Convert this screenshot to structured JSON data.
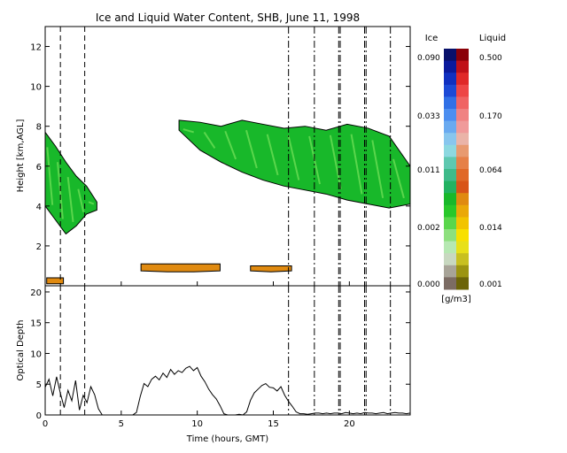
{
  "chart_data": [
    {
      "type": "heatmap",
      "title": "Ice and Liquid Water Content, SHB, June 11, 1998",
      "ylabel": "Height [km,AGL]",
      "xlim": [
        0,
        24
      ],
      "ylim": [
        0,
        13
      ],
      "x_ticks": [
        "0",
        "5",
        "10",
        "15",
        "20"
      ],
      "y_ticks": [
        "2",
        "4",
        "6",
        "8",
        "10",
        "12"
      ],
      "vlines_dashed": [
        1.0,
        2.6
      ],
      "vlines_dashdot": [
        16.0,
        17.7,
        19.3,
        19.4,
        21.0,
        21.1,
        22.7
      ],
      "regions": [
        {
          "phase": "ice",
          "x_start": 0.0,
          "x_end": 3.4,
          "y_top": [
            7.7,
            7.0,
            6.2,
            5.5,
            5.0,
            4.2
          ],
          "y_bottom": [
            4.0,
            3.3,
            2.6,
            3.0,
            3.6,
            3.8
          ]
        },
        {
          "phase": "ice",
          "x_start": 8.8,
          "x_end": 24.0,
          "y_top": [
            8.3,
            8.2,
            8.0,
            8.3,
            8.1,
            7.9,
            8.0,
            7.8,
            8.1,
            7.9,
            7.5,
            6.0
          ],
          "y_bottom": [
            7.8,
            6.8,
            6.2,
            5.7,
            5.3,
            5.0,
            4.8,
            4.6,
            4.3,
            4.1,
            3.9,
            4.1
          ]
        },
        {
          "phase": "liquid",
          "x_start": 6.3,
          "x_end": 11.5,
          "y_top": [
            1.1,
            1.1,
            1.1,
            1.1
          ],
          "y_bottom": [
            0.75,
            0.7,
            0.7,
            0.75
          ]
        },
        {
          "phase": "liquid",
          "x_start": 13.5,
          "x_end": 16.2,
          "y_top": [
            1.0,
            1.0,
            1.0
          ],
          "y_bottom": [
            0.75,
            0.7,
            0.75
          ]
        },
        {
          "phase": "liquid",
          "x_start": 0.1,
          "x_end": 1.2,
          "y_top": [
            0.4,
            0.4
          ],
          "y_bottom": [
            0.1,
            0.1
          ]
        }
      ],
      "colorbar": {
        "units": "[g/m3]",
        "ice_label": "Ice",
        "liquid_label": "Liquid",
        "ice_ticks": [
          "0.090",
          "0.033",
          "0.011",
          "0.002",
          "0.000"
        ],
        "liquid_ticks": [
          "0.500",
          "0.170",
          "0.064",
          "0.014",
          "0.001"
        ],
        "ice_colors": [
          "#08106a",
          "#0a1a9c",
          "#1030c0",
          "#1c4ad6",
          "#3070e6",
          "#4c8ef0",
          "#6aaaf0",
          "#88c6ee",
          "#8cd8e0",
          "#5ec8b0",
          "#3eba8a",
          "#22b262",
          "#18b82a",
          "#28c82a",
          "#5ad64c",
          "#8ee07e",
          "#b6e8b2",
          "#c8d8c0",
          "#a8a498",
          "#7c6c64"
        ],
        "liquid_colors": [
          "#8a0008",
          "#c01018",
          "#e02828",
          "#ee4646",
          "#f06464",
          "#f08282",
          "#f09a9a",
          "#eab4a8",
          "#e89a70",
          "#e68048",
          "#e06828",
          "#d85418",
          "#e08a10",
          "#eaa808",
          "#f2c400",
          "#f8e000",
          "#e8e018",
          "#c8c020",
          "#9c9410",
          "#6c6408"
        ]
      }
    },
    {
      "type": "line",
      "xlabel": "Time (hours, GMT)",
      "ylabel": "Optical Depth",
      "xlim": [
        0,
        24
      ],
      "ylim": [
        0,
        21
      ],
      "x_ticks": [
        "0",
        "5",
        "10",
        "15",
        "20"
      ],
      "y_ticks": [
        "0",
        "5",
        "10",
        "15",
        "20"
      ],
      "series": [
        {
          "x": [
            0.0,
            0.25,
            0.5,
            0.75,
            1.0,
            1.25,
            1.5,
            1.75,
            2.0,
            2.25,
            2.5,
            2.75,
            3.0,
            3.25,
            3.5,
            3.75,
            4.0,
            4.25,
            4.5,
            4.75,
            5.0,
            5.25,
            5.5,
            5.75,
            6.0,
            6.25,
            6.5,
            6.75,
            7.0,
            7.25,
            7.5,
            7.75,
            8.0,
            8.25,
            8.5,
            8.75,
            9.0,
            9.25,
            9.5,
            9.75,
            10.0,
            10.25,
            10.5,
            10.75,
            11.0,
            11.25,
            11.5,
            11.75,
            12.0,
            12.25,
            12.5,
            12.75,
            13.0,
            13.25,
            13.5,
            13.75,
            14.0,
            14.25,
            14.5,
            14.75,
            15.0,
            15.25,
            15.5,
            15.75,
            16.0,
            16.25,
            16.5,
            16.75,
            17.0,
            17.25,
            17.5,
            17.75,
            18.0,
            18.25,
            18.5,
            18.75,
            19.0,
            19.25,
            19.5,
            19.75,
            20.0,
            20.25,
            20.5,
            20.75,
            21.0,
            21.25,
            21.5,
            21.75,
            22.0,
            22.25,
            22.5,
            22.75,
            23.0,
            23.25,
            23.5,
            23.75,
            24.0
          ],
          "y": [
            4.5,
            5.8,
            3.1,
            6.2,
            3.5,
            1.2,
            4.0,
            2.3,
            5.6,
            0.8,
            3.2,
            2.0,
            4.6,
            3.3,
            1.0,
            0.0,
            0.0,
            0.0,
            0.0,
            0.0,
            0.0,
            0.0,
            0.0,
            0.0,
            0.4,
            3.0,
            5.1,
            4.6,
            5.8,
            6.3,
            5.7,
            6.8,
            6.1,
            7.4,
            6.6,
            7.2,
            6.9,
            7.6,
            7.9,
            7.2,
            7.7,
            6.3,
            5.4,
            4.2,
            3.3,
            2.6,
            1.5,
            0.2,
            0.0,
            0.0,
            0.0,
            0.1,
            0.0,
            0.5,
            2.4,
            3.6,
            4.2,
            4.8,
            5.1,
            4.5,
            4.4,
            3.9,
            4.6,
            3.2,
            2.2,
            1.4,
            0.5,
            0.2,
            0.2,
            0.1,
            0.2,
            0.3,
            0.3,
            0.2,
            0.3,
            0.2,
            0.3,
            0.3,
            0.2,
            0.4,
            0.3,
            0.2,
            0.3,
            0.2,
            0.4,
            0.3,
            0.3,
            0.2,
            0.3,
            0.4,
            0.2,
            0.3,
            0.4,
            0.3,
            0.3,
            0.2,
            0.3
          ]
        }
      ],
      "vlines_dashed": [
        1.0,
        2.6
      ],
      "vlines_dashdot": [
        16.0,
        17.7,
        19.3,
        19.4,
        21.0,
        21.1,
        22.7
      ]
    }
  ]
}
